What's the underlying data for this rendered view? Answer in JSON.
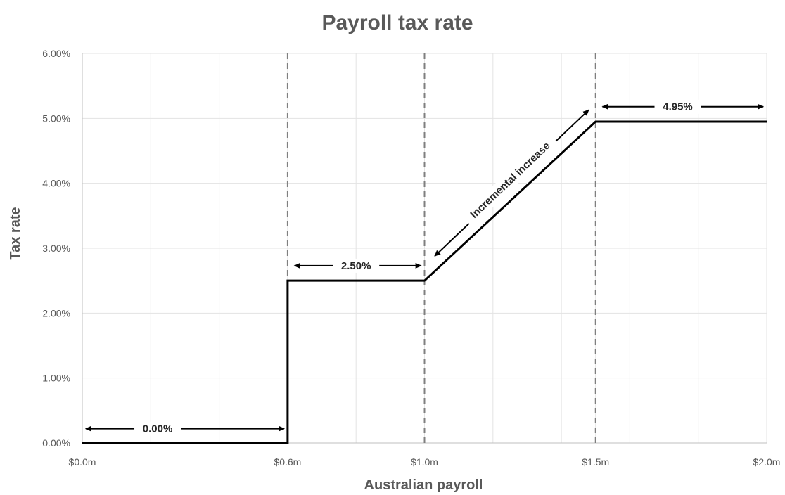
{
  "chart_data": {
    "type": "line",
    "title": "Payroll tax rate",
    "xlabel": "Australian payroll",
    "ylabel": "Tax rate",
    "xlim": [
      0,
      2.0
    ],
    "ylim": [
      0,
      6
    ],
    "x_tick_values": [
      0,
      0.6,
      1.0,
      1.5,
      2.0
    ],
    "x_tick_labels": [
      "$0.0m",
      "$0.6m",
      "$1.0m",
      "$1.5m",
      "$2.0m"
    ],
    "x_minor_gridlines": [
      0.2,
      0.4,
      0.8,
      1.2,
      1.4,
      1.6,
      1.8
    ],
    "y_tick_values": [
      0,
      1,
      2,
      3,
      4,
      5,
      6
    ],
    "y_tick_labels": [
      "0.00%",
      "1.00%",
      "2.00%",
      "3.00%",
      "4.00%",
      "5.00%",
      "6.00%"
    ],
    "grid": true,
    "legend": "none",
    "series": [
      {
        "points": [
          [
            0,
            0
          ],
          [
            0.6,
            0
          ],
          [
            0.6,
            2.5
          ],
          [
            1.0,
            2.5
          ],
          [
            1.5,
            4.95
          ],
          [
            2.0,
            4.95
          ]
        ],
        "color": "#000000"
      }
    ],
    "thresholds": [
      0.6,
      1.0,
      1.5
    ],
    "annotations": [
      {
        "text": "0.00%",
        "x_from": 0.01,
        "x_to": 0.59,
        "y": 0.22,
        "text_x": 0.22
      },
      {
        "text": "2.50%",
        "x_from": 0.62,
        "x_to": 0.99,
        "y": 2.73,
        "text_x": 0.8
      },
      {
        "text": "4.95%",
        "x_from": 1.52,
        "x_to": 1.99,
        "y": 5.18,
        "text_x": 1.74
      },
      {
        "text": "Incremental increase",
        "x_from": 1.03,
        "x_to": 1.48,
        "y_from": 2.88,
        "y_to": 5.13,
        "text_x": 1.25,
        "text_y": 4.05,
        "diagonal": true
      }
    ]
  }
}
